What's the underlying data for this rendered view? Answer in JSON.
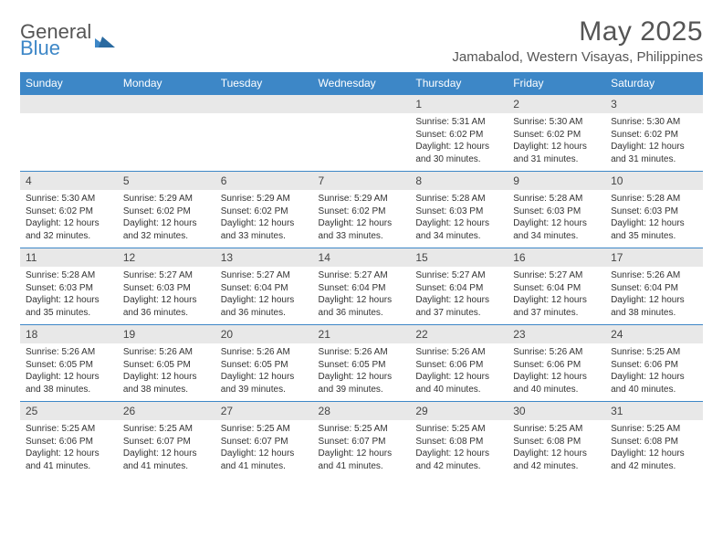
{
  "brand": {
    "part1": "General",
    "part2": "Blue"
  },
  "title": "May 2025",
  "location": "Jamabalod, Western Visayas, Philippines",
  "colors": {
    "header_bg": "#3d87c7",
    "header_text": "#ffffff",
    "daynum_bg": "#e8e8e8",
    "border": "#3d87c7",
    "body_text": "#333333",
    "title_text": "#555555"
  },
  "day_headers": [
    "Sunday",
    "Monday",
    "Tuesday",
    "Wednesday",
    "Thursday",
    "Friday",
    "Saturday"
  ],
  "weeks": [
    [
      null,
      null,
      null,
      null,
      {
        "n": "1",
        "sr": "5:31 AM",
        "ss": "6:02 PM",
        "dl": "12 hours and 30 minutes."
      },
      {
        "n": "2",
        "sr": "5:30 AM",
        "ss": "6:02 PM",
        "dl": "12 hours and 31 minutes."
      },
      {
        "n": "3",
        "sr": "5:30 AM",
        "ss": "6:02 PM",
        "dl": "12 hours and 31 minutes."
      }
    ],
    [
      {
        "n": "4",
        "sr": "5:30 AM",
        "ss": "6:02 PM",
        "dl": "12 hours and 32 minutes."
      },
      {
        "n": "5",
        "sr": "5:29 AM",
        "ss": "6:02 PM",
        "dl": "12 hours and 32 minutes."
      },
      {
        "n": "6",
        "sr": "5:29 AM",
        "ss": "6:02 PM",
        "dl": "12 hours and 33 minutes."
      },
      {
        "n": "7",
        "sr": "5:29 AM",
        "ss": "6:02 PM",
        "dl": "12 hours and 33 minutes."
      },
      {
        "n": "8",
        "sr": "5:28 AM",
        "ss": "6:03 PM",
        "dl": "12 hours and 34 minutes."
      },
      {
        "n": "9",
        "sr": "5:28 AM",
        "ss": "6:03 PM",
        "dl": "12 hours and 34 minutes."
      },
      {
        "n": "10",
        "sr": "5:28 AM",
        "ss": "6:03 PM",
        "dl": "12 hours and 35 minutes."
      }
    ],
    [
      {
        "n": "11",
        "sr": "5:28 AM",
        "ss": "6:03 PM",
        "dl": "12 hours and 35 minutes."
      },
      {
        "n": "12",
        "sr": "5:27 AM",
        "ss": "6:03 PM",
        "dl": "12 hours and 36 minutes."
      },
      {
        "n": "13",
        "sr": "5:27 AM",
        "ss": "6:04 PM",
        "dl": "12 hours and 36 minutes."
      },
      {
        "n": "14",
        "sr": "5:27 AM",
        "ss": "6:04 PM",
        "dl": "12 hours and 36 minutes."
      },
      {
        "n": "15",
        "sr": "5:27 AM",
        "ss": "6:04 PM",
        "dl": "12 hours and 37 minutes."
      },
      {
        "n": "16",
        "sr": "5:27 AM",
        "ss": "6:04 PM",
        "dl": "12 hours and 37 minutes."
      },
      {
        "n": "17",
        "sr": "5:26 AM",
        "ss": "6:04 PM",
        "dl": "12 hours and 38 minutes."
      }
    ],
    [
      {
        "n": "18",
        "sr": "5:26 AM",
        "ss": "6:05 PM",
        "dl": "12 hours and 38 minutes."
      },
      {
        "n": "19",
        "sr": "5:26 AM",
        "ss": "6:05 PM",
        "dl": "12 hours and 38 minutes."
      },
      {
        "n": "20",
        "sr": "5:26 AM",
        "ss": "6:05 PM",
        "dl": "12 hours and 39 minutes."
      },
      {
        "n": "21",
        "sr": "5:26 AM",
        "ss": "6:05 PM",
        "dl": "12 hours and 39 minutes."
      },
      {
        "n": "22",
        "sr": "5:26 AM",
        "ss": "6:06 PM",
        "dl": "12 hours and 40 minutes."
      },
      {
        "n": "23",
        "sr": "5:26 AM",
        "ss": "6:06 PM",
        "dl": "12 hours and 40 minutes."
      },
      {
        "n": "24",
        "sr": "5:25 AM",
        "ss": "6:06 PM",
        "dl": "12 hours and 40 minutes."
      }
    ],
    [
      {
        "n": "25",
        "sr": "5:25 AM",
        "ss": "6:06 PM",
        "dl": "12 hours and 41 minutes."
      },
      {
        "n": "26",
        "sr": "5:25 AM",
        "ss": "6:07 PM",
        "dl": "12 hours and 41 minutes."
      },
      {
        "n": "27",
        "sr": "5:25 AM",
        "ss": "6:07 PM",
        "dl": "12 hours and 41 minutes."
      },
      {
        "n": "28",
        "sr": "5:25 AM",
        "ss": "6:07 PM",
        "dl": "12 hours and 41 minutes."
      },
      {
        "n": "29",
        "sr": "5:25 AM",
        "ss": "6:08 PM",
        "dl": "12 hours and 42 minutes."
      },
      {
        "n": "30",
        "sr": "5:25 AM",
        "ss": "6:08 PM",
        "dl": "12 hours and 42 minutes."
      },
      {
        "n": "31",
        "sr": "5:25 AM",
        "ss": "6:08 PM",
        "dl": "12 hours and 42 minutes."
      }
    ]
  ],
  "labels": {
    "sunrise": "Sunrise:",
    "sunset": "Sunset:",
    "daylight": "Daylight:"
  }
}
